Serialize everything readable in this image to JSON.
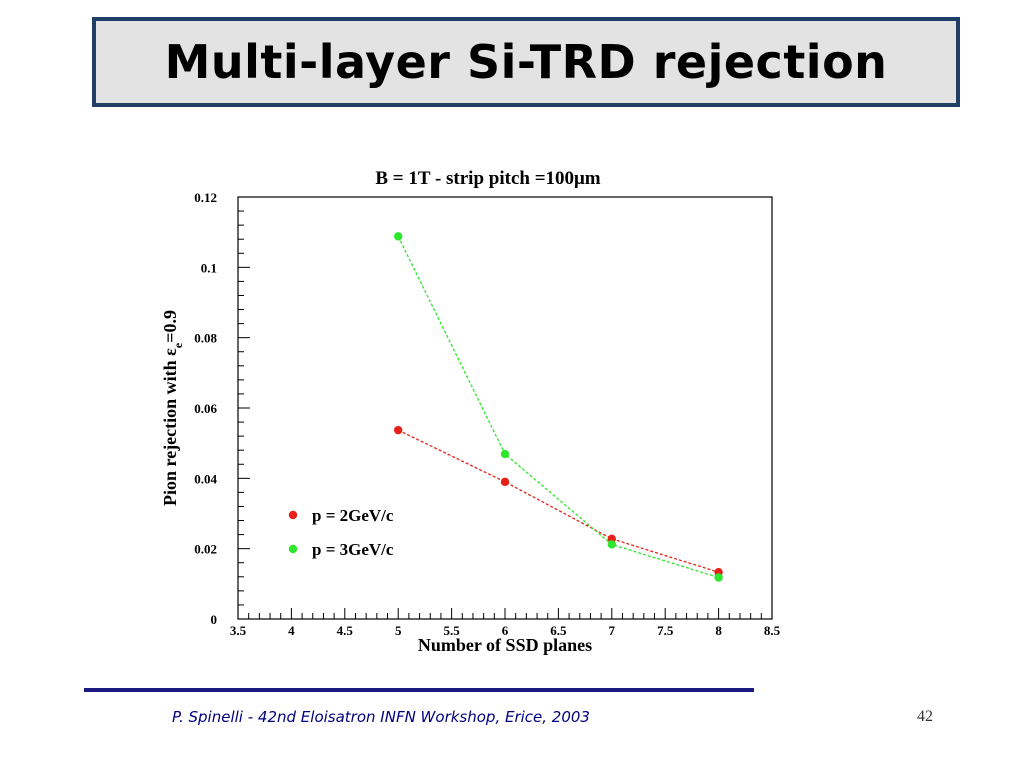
{
  "slide": {
    "title": "Multi-layer Si-TRD rejection",
    "footer": "P. Spinelli - 42nd Eloisatron INFN Workshop, Erice, 2003",
    "page_number": "42"
  },
  "chart_data": {
    "type": "line",
    "title": "B = 1T - strip pitch =100μm",
    "xlabel": "Number of SSD planes",
    "ylabel": "Pion rejection with εe=0.9",
    "ylabel_main": "Pion rejection with ε",
    "ylabel_sub": "e",
    "ylabel_tail": "=0.9",
    "xlim": [
      3.5,
      8.5
    ],
    "ylim": [
      0,
      0.12
    ],
    "x_ticks": [
      3.5,
      4,
      4.5,
      5,
      5.5,
      6,
      6.5,
      7,
      7.5,
      8,
      8.5
    ],
    "y_ticks": [
      0,
      0.02,
      0.04,
      0.06,
      0.08,
      0.1,
      0.12
    ],
    "grid": false,
    "legend_position": "lower-left",
    "series": [
      {
        "name": "p = 2GeV/c",
        "color": "#e8201a",
        "x": [
          5,
          6,
          7,
          8
        ],
        "y": [
          0.0537,
          0.039,
          0.0228,
          0.0133
        ]
      },
      {
        "name": "p = 3GeV/c",
        "color": "#2ee62e",
        "x": [
          5,
          6,
          7,
          8
        ],
        "y": [
          0.1088,
          0.0469,
          0.0212,
          0.0118
        ]
      }
    ]
  }
}
